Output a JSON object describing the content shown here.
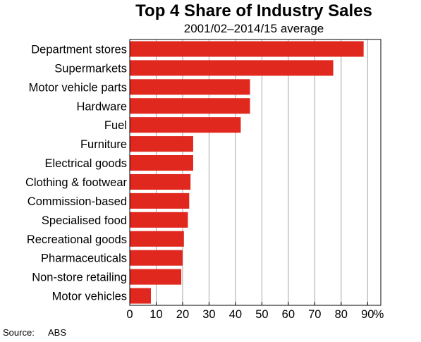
{
  "chart_data": {
    "type": "bar",
    "orientation": "horizontal",
    "title": "Top 4 Share of Industry Sales",
    "subtitle": "2001/02–2014/15 average",
    "xlabel": "%",
    "ylabel": "",
    "xlim": [
      0,
      95
    ],
    "xticks": [
      "0",
      "10",
      "20",
      "30",
      "40",
      "50",
      "60",
      "70",
      "80",
      "90"
    ],
    "grid": true,
    "bar_color": "#e0281f",
    "categories": [
      "Department stores",
      "Supermarkets",
      "Motor vehicle parts",
      "Hardware",
      "Fuel",
      "Furniture",
      "Electrical goods",
      "Clothing & footwear",
      "Commission-based",
      "Specialised food",
      "Recreational goods",
      "Pharmaceuticals",
      "Non-store retailing",
      "Motor vehicles"
    ],
    "values": [
      88.5,
      77,
      45.5,
      45.5,
      42,
      24,
      24,
      23,
      22.5,
      22,
      20.5,
      20,
      19.5,
      8
    ]
  },
  "source": {
    "label": "Source:",
    "value": "ABS"
  }
}
